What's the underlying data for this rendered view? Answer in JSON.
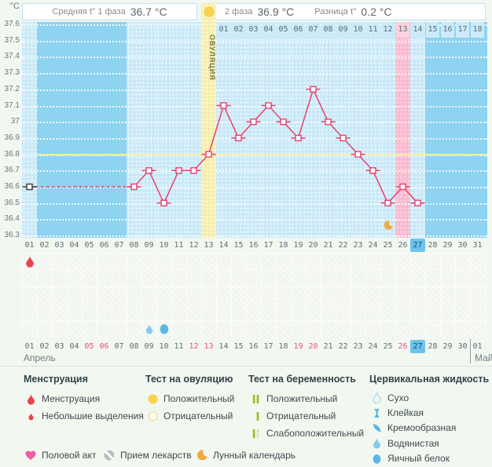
{
  "header": {
    "phase1_label": "Средняя t° 1 фаза",
    "phase1_value": "36.7 °C",
    "phase2_label": "2 фаза",
    "phase2_value": "36.9 °C",
    "diff_label": "Разница t°",
    "diff_value": "0.2 °C"
  },
  "axis": {
    "unit": "°C",
    "tick_max": 37.6,
    "tick_min": 36.3,
    "tick_step": 0.1
  },
  "chart_data": {
    "type": "line",
    "title": "",
    "ylabel": "°C",
    "ylim": [
      36.3,
      37.6
    ],
    "x_days": 31,
    "points": [
      {
        "day": 1,
        "temp": 36.6
      },
      {
        "day": 8,
        "temp": 36.6
      },
      {
        "day": 9,
        "temp": 36.7
      },
      {
        "day": 10,
        "temp": 36.5
      },
      {
        "day": 11,
        "temp": 36.7
      },
      {
        "day": 12,
        "temp": 36.7
      },
      {
        "day": 13,
        "temp": 36.8
      },
      {
        "day": 14,
        "temp": 37.1
      },
      {
        "day": 15,
        "temp": 36.9
      },
      {
        "day": 16,
        "temp": 37.0
      },
      {
        "day": 17,
        "temp": 37.1
      },
      {
        "day": 18,
        "temp": 37.0
      },
      {
        "day": 19,
        "temp": 36.9
      },
      {
        "day": 20,
        "temp": 37.2
      },
      {
        "day": 21,
        "temp": 37.0
      },
      {
        "day": 22,
        "temp": 36.9
      },
      {
        "day": 23,
        "temp": 36.8
      },
      {
        "day": 24,
        "temp": 36.7
      },
      {
        "day": 25,
        "temp": 36.5
      },
      {
        "day": 26,
        "temp": 36.6
      },
      {
        "day": 27,
        "temp": 36.5
      }
    ],
    "dashed_between_days": [
      1,
      8
    ],
    "coverline_temp": 36.8,
    "ovulation_day": 13,
    "ovulation_label": "ОВУЛЯЦИЯ",
    "expected_period_day": 26,
    "today_day": 27,
    "measured_day_columns": [
      1,
      8,
      9,
      10,
      11,
      12,
      14,
      15,
      16,
      17,
      18,
      19,
      20,
      21,
      22,
      23,
      24,
      25,
      27
    ],
    "phase2_day_numbers": [
      "01",
      "02",
      "03",
      "04",
      "05",
      "06",
      "07",
      "08",
      "09",
      "10",
      "11",
      "12",
      "13",
      "14",
      "15",
      "16",
      "17",
      "18"
    ],
    "phase2_pink_number": "13",
    "moon_day": 25
  },
  "events": {
    "rows": 5,
    "items": [
      {
        "day": 1,
        "row": 1,
        "icon": "menstruation-drop"
      },
      {
        "day": 9,
        "row": 5,
        "icon": "watery-drop"
      },
      {
        "day": 10,
        "row": 5,
        "icon": "eggwhite-drop"
      }
    ]
  },
  "calendar": {
    "cycle_days": [
      "01",
      "02",
      "03",
      "04",
      "05",
      "06",
      "07",
      "08",
      "09",
      "10",
      "11",
      "12",
      "13",
      "14",
      "15",
      "16",
      "17",
      "18",
      "19",
      "20",
      "21",
      "22",
      "23",
      "24",
      "25",
      "26",
      "27",
      "28",
      "29",
      "30",
      "31"
    ],
    "dates": [
      "01",
      "02",
      "03",
      "04",
      "05",
      "06",
      "07",
      "08",
      "09",
      "10",
      "11",
      "12",
      "13",
      "14",
      "15",
      "16",
      "17",
      "18",
      "19",
      "20",
      "21",
      "22",
      "23",
      "24",
      "25",
      "26",
      "27",
      "28",
      "29",
      "30",
      "01"
    ],
    "weekend_positions": [
      5,
      6,
      12,
      13,
      19,
      20,
      26
    ],
    "today_position": 27,
    "month1": "Апрель",
    "month2": "Май"
  },
  "legend": {
    "groups": [
      {
        "title": "Менструация",
        "items": [
          {
            "icon": "drop-red-large",
            "label": "Менструация"
          },
          {
            "icon": "drop-red-small",
            "label": "Небольшие выделения"
          }
        ]
      },
      {
        "title": "Тест на овуляцию",
        "items": [
          {
            "icon": "circle-yellow-filled",
            "label": "Положительный"
          },
          {
            "icon": "circle-yellow-outline",
            "label": "Отрицательный"
          }
        ]
      },
      {
        "title": "Тест на беременность",
        "items": [
          {
            "icon": "bars-positive",
            "label": "Положительный"
          },
          {
            "icon": "bars-negative",
            "label": "Отрицательный"
          },
          {
            "icon": "bars-weak",
            "label": "Слабоположительный"
          }
        ]
      },
      {
        "title": "Цервикальная жидкость",
        "items": [
          {
            "icon": "drop-outline-blue",
            "label": "Сухо"
          },
          {
            "icon": "ibeam-blue",
            "label": "Клейкая"
          },
          {
            "icon": "comma-blue",
            "label": "Кремообразная"
          },
          {
            "icon": "watery-drop",
            "label": "Водянистая"
          },
          {
            "icon": "eggwhite-drop",
            "label": "Яичный белок"
          }
        ]
      }
    ],
    "extra_items": [
      {
        "icon": "heart-pink",
        "label": "Половой акт"
      },
      {
        "icon": "pill-gray",
        "label": "Прием лекарств"
      },
      {
        "icon": "moon-orange",
        "label": "Лунный календарь"
      }
    ]
  },
  "colors": {
    "background": "#f2f8f0",
    "chart_base": "#8ed3f0",
    "column_measured": "#c9e9f8",
    "column_ovulation": "#f5eeac",
    "column_period_expected": "#f9bace",
    "cell_blue": "#cdeaf9",
    "cell_pink": "#fbd2de",
    "line_pink": "#e8406e",
    "marker_start_black": "#3a3a3a",
    "coverline_yellow": "#f5efa3",
    "axis_text": "#68767e",
    "day_text": "#5d6e78",
    "weekend_text": "#ee4f81",
    "today_bg": "#6cc3ef",
    "today_text": "#1d4f63",
    "red_drop": "#e8434e",
    "yellow_test": "#f8d14e",
    "green_bar": "#94c11f",
    "pale_green_bar": "#d9e7ab",
    "blue_icon": "#57b8e8",
    "light_blue_icon": "#82cbf0",
    "outline_blue": "#a5d8f2",
    "orange_moon": "#f2a93b",
    "pink_heart": "#f558a5",
    "gray_pill": "#b9bdbf"
  }
}
